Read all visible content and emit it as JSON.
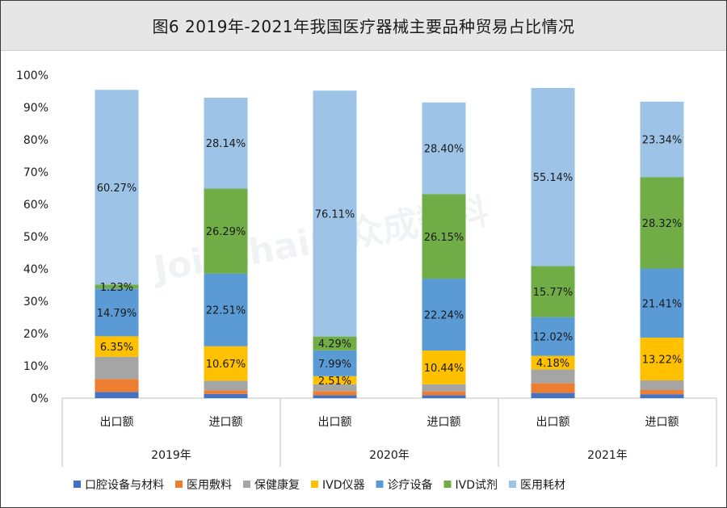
{
  "title": "图6  2019年-2021年我国医疗器械主要品种贸易占比情况",
  "watermark": "Joinchain.众成数科",
  "chart_data": {
    "type": "bar",
    "stacked": true,
    "percent": true,
    "ylim": [
      0,
      100
    ],
    "yticks": [
      "0%",
      "10%",
      "20%",
      "30%",
      "40%",
      "50%",
      "60%",
      "70%",
      "80%",
      "90%",
      "100%"
    ],
    "groups": [
      "2019年",
      "2020年",
      "2021年"
    ],
    "categories": [
      "出口额",
      "进口额",
      "出口额",
      "进口额",
      "出口额",
      "进口额"
    ],
    "group_of_category": [
      0,
      0,
      1,
      1,
      2,
      2
    ],
    "legend_position": "bottom",
    "series": [
      {
        "name": "口腔设备与材料",
        "color": "#4472c4",
        "values": [
          1.9,
          1.3,
          0.9,
          0.9,
          1.6,
          1.2
        ],
        "labels": [
          "",
          "",
          "",
          "",
          "",
          ""
        ]
      },
      {
        "name": "医用敷料",
        "color": "#ed7d31",
        "values": [
          4.0,
          1.1,
          1.3,
          1.2,
          3.0,
          1.3
        ],
        "labels": [
          "",
          "",
          "",
          "",
          "",
          ""
        ]
      },
      {
        "name": "保健康复",
        "color": "#a5a5a5",
        "values": [
          6.9,
          3.0,
          2.1,
          2.2,
          4.3,
          3.0
        ],
        "labels": [
          "",
          "",
          "",
          "",
          "",
          ""
        ]
      },
      {
        "name": "IVD仪器",
        "color": "#ffc000",
        "values": [
          6.35,
          10.67,
          2.51,
          10.44,
          4.18,
          13.22
        ],
        "labels": [
          "6.35%",
          "10.67%",
          "2.51%",
          "10.44%",
          "4.18%",
          "13.22%"
        ]
      },
      {
        "name": "诊疗设备",
        "color": "#5b9bd5",
        "values": [
          14.79,
          22.51,
          7.99,
          22.24,
          12.02,
          21.41
        ],
        "labels": [
          "14.79%",
          "22.51%",
          "7.99%",
          "22.24%",
          "12.02%",
          "21.41%"
        ]
      },
      {
        "name": "IVD试剂",
        "color": "#70ad47",
        "values": [
          1.23,
          26.29,
          4.29,
          26.15,
          15.77,
          28.32
        ],
        "labels": [
          "1.23%",
          "26.29%",
          "4.29%",
          "26.15%",
          "15.77%",
          "28.32%"
        ]
      },
      {
        "name": "医用耗材",
        "color": "#9dc3e6",
        "values": [
          60.27,
          28.14,
          76.11,
          28.4,
          55.14,
          23.34
        ],
        "labels": [
          "60.27%",
          "28.14%",
          "76.11%",
          "28.40%",
          "55.14%",
          "23.34%"
        ]
      }
    ]
  }
}
